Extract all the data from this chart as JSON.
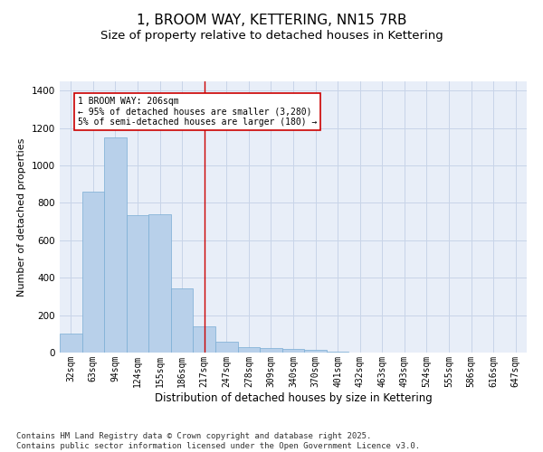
{
  "title": "1, BROOM WAY, KETTERING, NN15 7RB",
  "subtitle": "Size of property relative to detached houses in Kettering",
  "xlabel": "Distribution of detached houses by size in Kettering",
  "ylabel": "Number of detached properties",
  "categories": [
    "32sqm",
    "63sqm",
    "94sqm",
    "124sqm",
    "155sqm",
    "186sqm",
    "217sqm",
    "247sqm",
    "278sqm",
    "309sqm",
    "340sqm",
    "370sqm",
    "401sqm",
    "432sqm",
    "463sqm",
    "493sqm",
    "524sqm",
    "555sqm",
    "586sqm",
    "616sqm",
    "647sqm"
  ],
  "values": [
    100,
    860,
    1150,
    735,
    740,
    345,
    140,
    60,
    30,
    25,
    20,
    15,
    3,
    0,
    0,
    0,
    0,
    0,
    0,
    0,
    0
  ],
  "bar_color": "#b8d0ea",
  "bar_edgecolor": "#7aadd4",
  "grid_color": "#c8d4e8",
  "background_color": "#e8eef8",
  "vline_x": 6,
  "vline_color": "#cc0000",
  "annotation_text": "1 BROOM WAY: 206sqm\n← 95% of detached houses are smaller (3,280)\n5% of semi-detached houses are larger (180) →",
  "annotation_box_color": "#cc0000",
  "ylim": [
    0,
    1450
  ],
  "footnote": "Contains HM Land Registry data © Crown copyright and database right 2025.\nContains public sector information licensed under the Open Government Licence v3.0.",
  "title_fontsize": 11,
  "subtitle_fontsize": 9.5,
  "xlabel_fontsize": 8.5,
  "ylabel_fontsize": 8,
  "annotation_fontsize": 7,
  "footnote_fontsize": 6.5,
  "tick_fontsize": 7,
  "ytick_fontsize": 7.5
}
